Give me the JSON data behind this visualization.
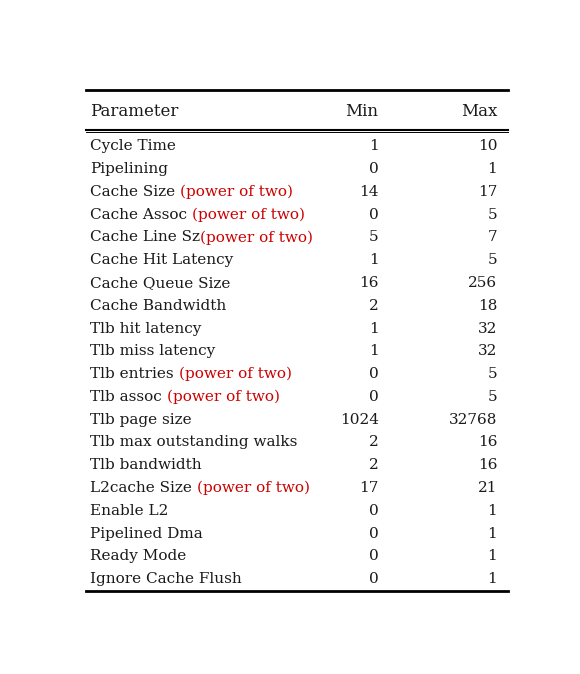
{
  "title_row": [
    "Parameter",
    "Min",
    "Max"
  ],
  "rows": [
    {
      "param": "Cycle Time",
      "suffix": "",
      "min": "1",
      "max": "10"
    },
    {
      "param": "Pipelining",
      "suffix": "",
      "min": "0",
      "max": "1"
    },
    {
      "param": "Cache Size ",
      "suffix": "(power of two)",
      "min": "14",
      "max": "17"
    },
    {
      "param": "Cache Assoc ",
      "suffix": "(power of two)",
      "min": "0",
      "max": "5"
    },
    {
      "param": "Cache Line Sz",
      "suffix": "(power of two)",
      "min": "5",
      "max": "7"
    },
    {
      "param": "Cache Hit Latency",
      "suffix": "",
      "min": "1",
      "max": "5"
    },
    {
      "param": "Cache Queue Size",
      "suffix": "",
      "min": "16",
      "max": "256"
    },
    {
      "param": "Cache Bandwidth",
      "suffix": "",
      "min": "2",
      "max": "18"
    },
    {
      "param": "Tlb hit latency",
      "suffix": "",
      "min": "1",
      "max": "32"
    },
    {
      "param": "Tlb miss latency",
      "suffix": "",
      "min": "1",
      "max": "32"
    },
    {
      "param": "Tlb entries ",
      "suffix": "(power of two)",
      "min": "0",
      "max": "5"
    },
    {
      "param": "Tlb assoc ",
      "suffix": "(power of two)",
      "min": "0",
      "max": "5"
    },
    {
      "param": "Tlb page size",
      "suffix": "",
      "min": "1024",
      "max": "32768"
    },
    {
      "param": "Tlb max outstanding walks",
      "suffix": "",
      "min": "2",
      "max": "16"
    },
    {
      "param": "Tlb bandwidth",
      "suffix": "",
      "min": "2",
      "max": "16"
    },
    {
      "param": "L2cache Size ",
      "suffix": "(power of two)",
      "min": "17",
      "max": "21"
    },
    {
      "param": "Enable L2",
      "suffix": "",
      "min": "0",
      "max": "1"
    },
    {
      "param": "Pipelined Dma",
      "suffix": "",
      "min": "0",
      "max": "1"
    },
    {
      "param": "Ready Mode",
      "suffix": "",
      "min": "0",
      "max": "1"
    },
    {
      "param": "Ignore Cache Flush",
      "suffix": "",
      "min": "0",
      "max": "1"
    }
  ],
  "text_color": "#1a1a1a",
  "red_color": "#cc0000",
  "bg_color": "#ffffff",
  "font_size": 11.0,
  "header_font_size": 12.0
}
